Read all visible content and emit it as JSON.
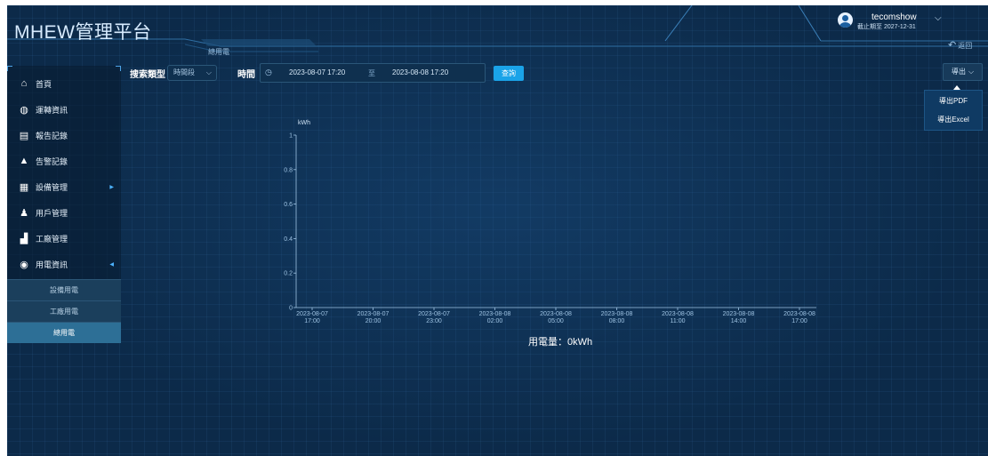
{
  "header": {
    "title": "MHEW管理平台",
    "breadcrumb": "總用電",
    "user": {
      "name": "tecomshow",
      "expiry": "截止期至 2027-12-31"
    },
    "back_label": "返回"
  },
  "sidebar": {
    "items": [
      {
        "label": "首頁",
        "icon": "home-icon"
      },
      {
        "label": "運轉資訊",
        "icon": "globe-icon"
      },
      {
        "label": "報告記錄",
        "icon": "report-icon"
      },
      {
        "label": "告警記錄",
        "icon": "bell-icon"
      },
      {
        "label": "設備管理",
        "icon": "device-grid-icon"
      },
      {
        "label": "用戶管理",
        "icon": "user-icon"
      },
      {
        "label": "工廠管理",
        "icon": "factory-icon"
      },
      {
        "label": "用電資訊",
        "icon": "power-icon"
      }
    ],
    "sub_items": [
      {
        "label": "設備用電"
      },
      {
        "label": "工廠用電"
      },
      {
        "label": "總用電",
        "active": true
      }
    ]
  },
  "toolbar": {
    "search_type_label": "搜索類型",
    "search_type_value": "時間段",
    "time_label": "時間",
    "start_time": "2023-08-07 17:20",
    "separator": "至",
    "end_time": "2023-08-08 17:20",
    "query_label": "查詢",
    "export_label": "導出",
    "export_options": [
      "導出PDF",
      "導出Excel"
    ]
  },
  "chart_data": {
    "type": "line",
    "ylabel": "kWh",
    "ylim": [
      0,
      1
    ],
    "yticks": [
      "0",
      "0.2",
      "0.4",
      "0.6",
      "0.8",
      "1"
    ],
    "xticks": [
      [
        "2023-08-07",
        "17:00"
      ],
      [
        "2023-08-07",
        "20:00"
      ],
      [
        "2023-08-07",
        "23:00"
      ],
      [
        "2023-08-08",
        "02:00"
      ],
      [
        "2023-08-08",
        "05:00"
      ],
      [
        "2023-08-08",
        "08:00"
      ],
      [
        "2023-08-08",
        "11:00"
      ],
      [
        "2023-08-08",
        "14:00"
      ],
      [
        "2023-08-08",
        "17:00"
      ]
    ],
    "series": [],
    "total_text": "用電量：0kWh"
  },
  "colors": {
    "background": "#0c2a49",
    "accent": "#1aa3e8",
    "active_sub": "#2d6f96"
  }
}
